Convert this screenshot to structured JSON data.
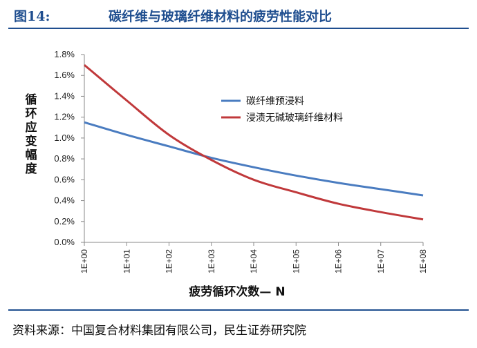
{
  "figure": {
    "number": "图14:",
    "title": "碳纤维与玻璃纤维材料的疲劳性能对比"
  },
  "source": "资料来源：中国复合材料集团有限公司，民生证券研究院",
  "colors": {
    "header": "#1f4e8f",
    "series_1": "#4a7cc0",
    "series_2": "#c0393b"
  },
  "chart_data": {
    "type": "line",
    "title": "",
    "xlabel": "疲劳循环次数— N",
    "ylabel": "循环应变幅度",
    "x": [
      "1E+00",
      "1E+01",
      "1E+02",
      "1E+03",
      "1E+04",
      "1E+05",
      "1E+06",
      "1E+07",
      "1E+08"
    ],
    "ylim": [
      0,
      1.8
    ],
    "yticks": [
      "0.0%",
      "0.2%",
      "0.4%",
      "0.6%",
      "0.8%",
      "1.0%",
      "1.2%",
      "1.4%",
      "1.6%",
      "1.8%"
    ],
    "grid": false,
    "legend_position": "top-right",
    "series": [
      {
        "name": "碳纤维预浸料",
        "color": "#4a7cc0",
        "values": [
          1.15,
          1.03,
          0.92,
          0.81,
          0.72,
          0.64,
          0.57,
          0.51,
          0.45
        ]
      },
      {
        "name": "浸渍无碱玻璃纤维材料",
        "color": "#c0393b",
        "values": [
          1.7,
          1.36,
          1.03,
          0.79,
          0.6,
          0.48,
          0.37,
          0.29,
          0.22
        ]
      }
    ]
  }
}
